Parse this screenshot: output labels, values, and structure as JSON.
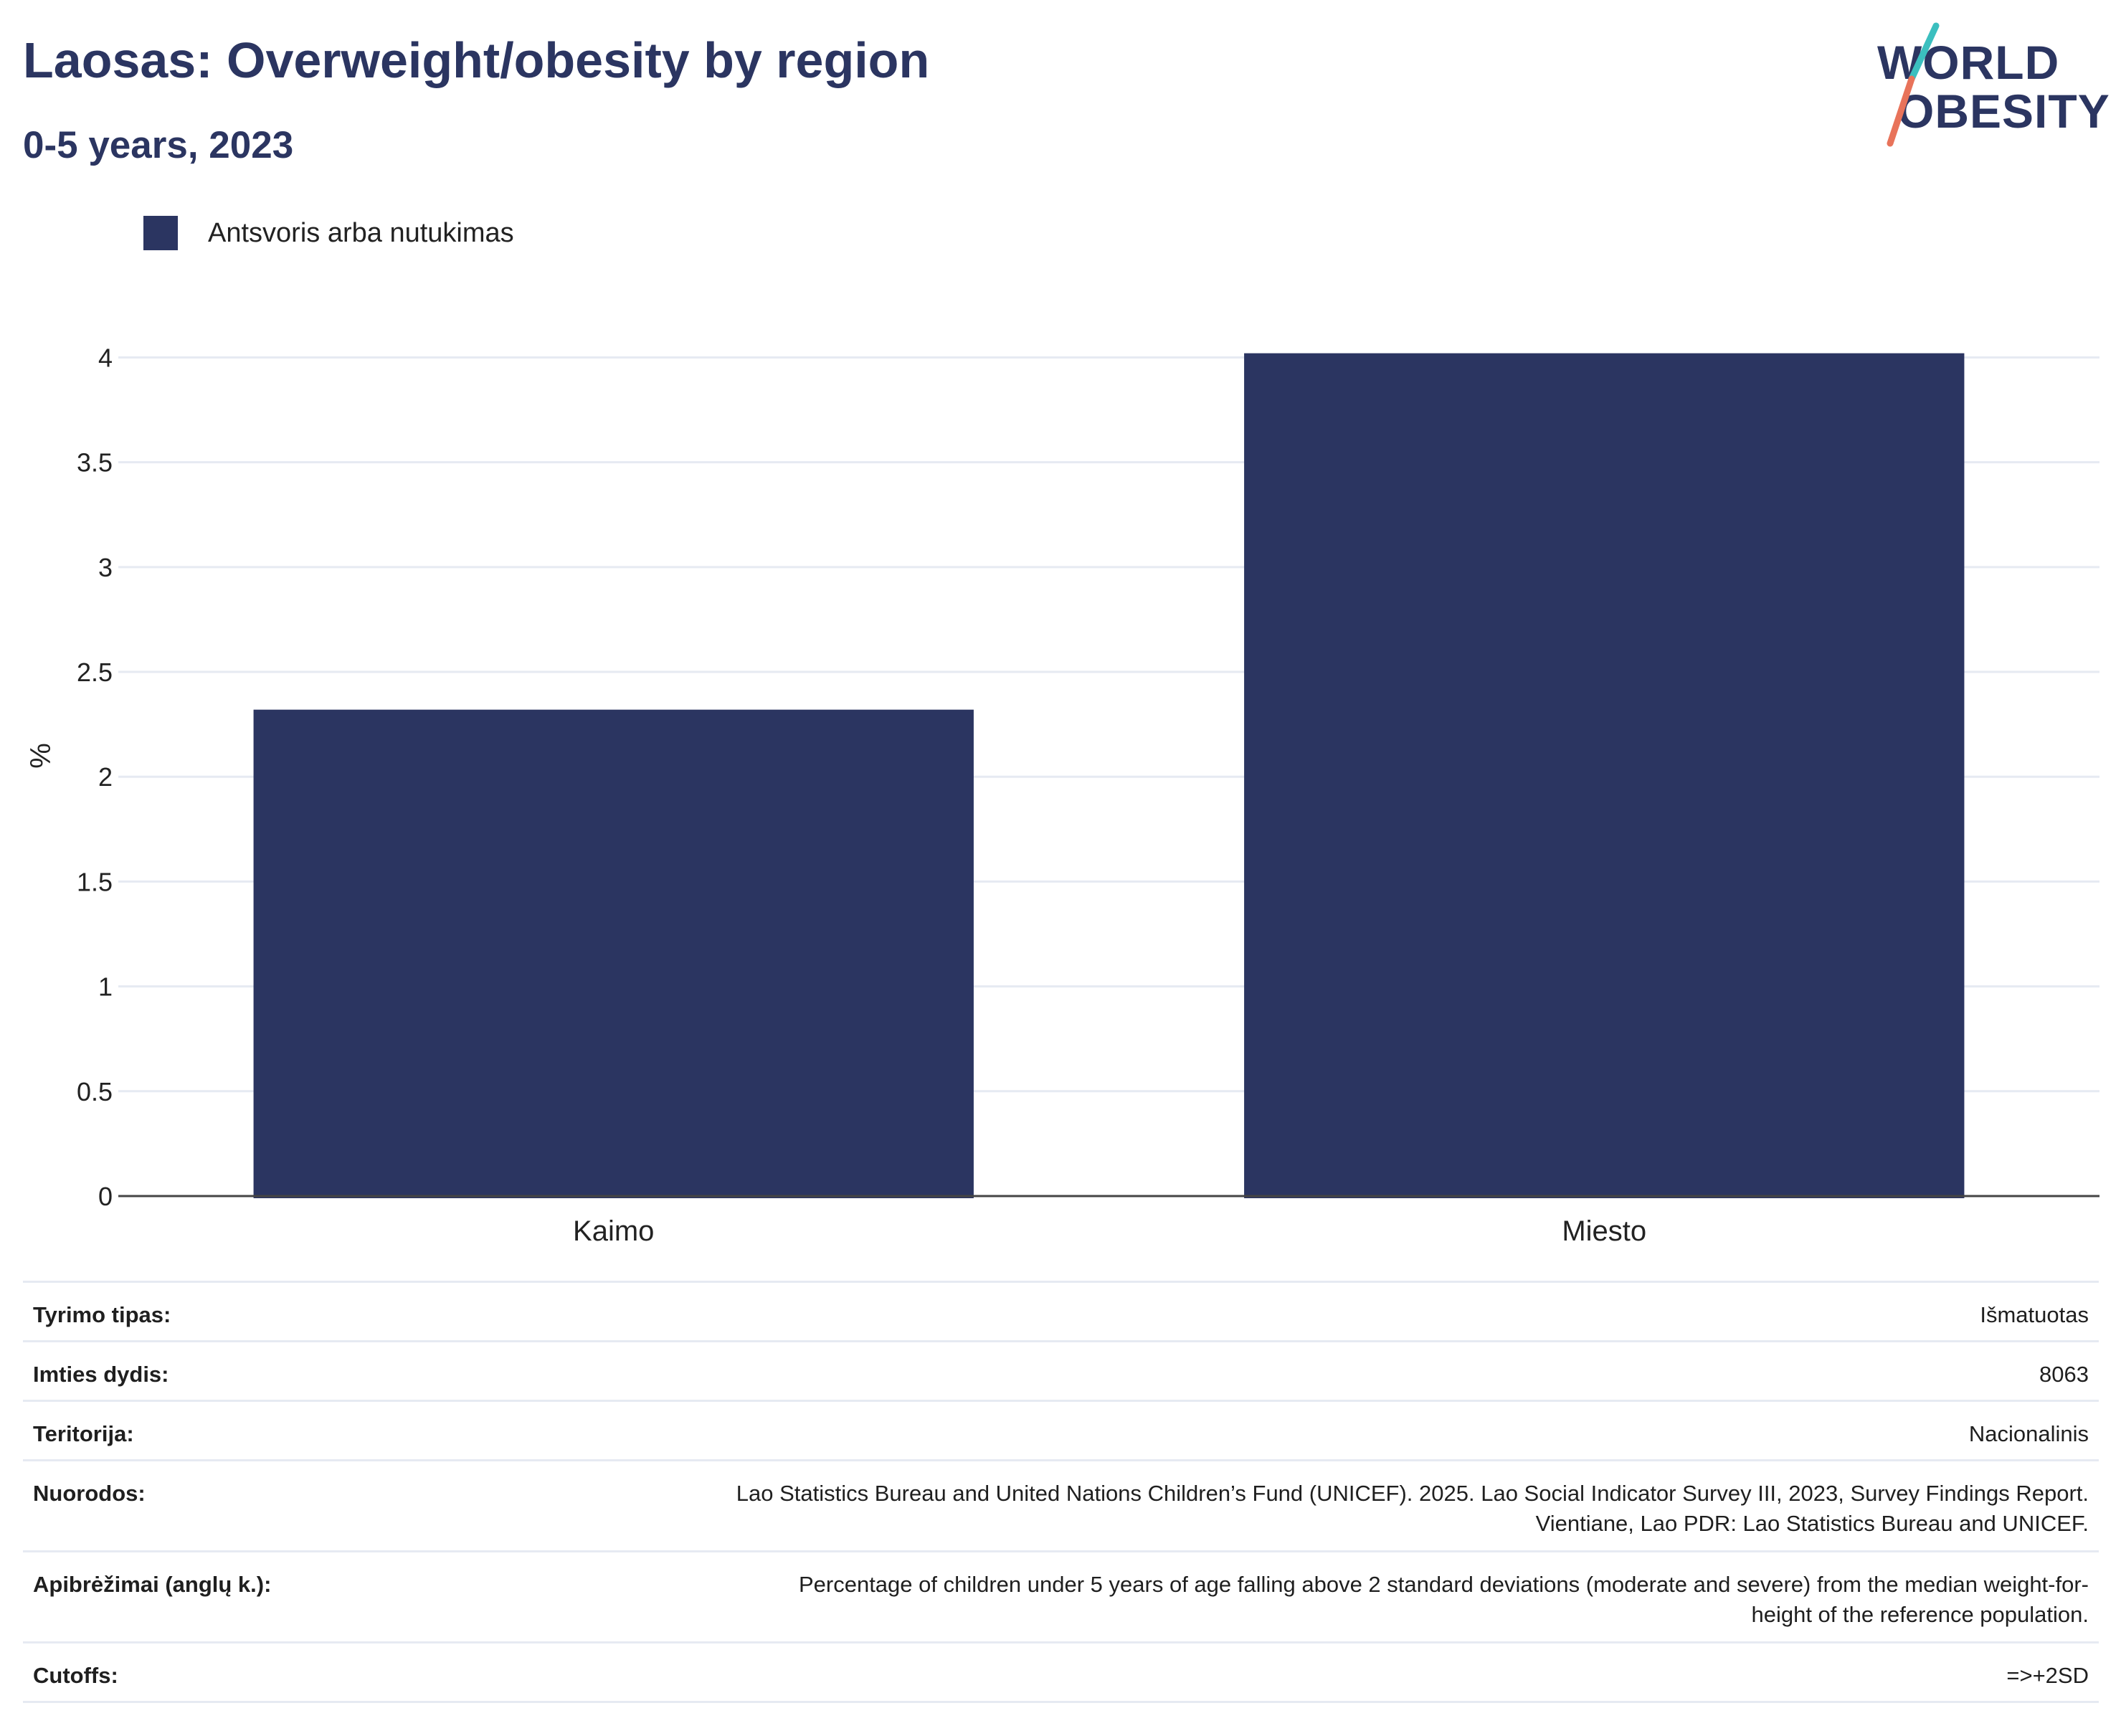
{
  "header": {
    "title": "Laosas: Overweight/obesity by region",
    "subtitle": "0-5 years, 2023"
  },
  "logo": {
    "line1": "WORLD",
    "line2": "OBESITY",
    "slash_colors": [
      "#3bbfbf",
      "#e8735a"
    ]
  },
  "colors": {
    "bar": "#2b3561",
    "title": "#2b3561",
    "grid": "#e6eaf2",
    "axis": "#444444"
  },
  "chart_data": {
    "type": "bar",
    "categories": [
      "Kaimo",
      "Miesto"
    ],
    "series": [
      {
        "name": "Antsvoris arba nutukimas",
        "values": [
          2.32,
          4.02
        ]
      }
    ],
    "ylabel": "%",
    "xlabel": "",
    "ylim": [
      0,
      4.2
    ],
    "yticks": [
      0,
      0.5,
      1,
      1.5,
      2,
      2.5,
      3,
      3.5,
      4
    ],
    "ytick_labels": [
      "0",
      "0.5",
      "1",
      "1.5",
      "2",
      "2.5",
      "3",
      "3.5",
      "4"
    ],
    "grid": true,
    "legend_position": "top-left"
  },
  "meta": [
    {
      "key": "Tyrimo tipas:",
      "value": "Išmatuotas"
    },
    {
      "key": "Imties dydis:",
      "value": "8063"
    },
    {
      "key": "Teritorija:",
      "value": "Nacionalinis"
    },
    {
      "key": "Nuorodos:",
      "value_lines": [
        "Lao Statistics Bureau and United Nations Children’s Fund (UNICEF). 2025. Lao Social Indicator Survey III, 2023, Survey Findings Report.",
        "Vientiane, Lao PDR: Lao Statistics Bureau and UNICEF."
      ]
    },
    {
      "key": "Apibrėžimai (anglų k.):",
      "value_lines": [
        "Percentage of children under 5 years of age falling above 2 standard deviations (moderate and severe) from the median weight-for-",
        "height of the reference population."
      ]
    },
    {
      "key": "Cutoffs:",
      "value": "=>+2SD"
    }
  ]
}
